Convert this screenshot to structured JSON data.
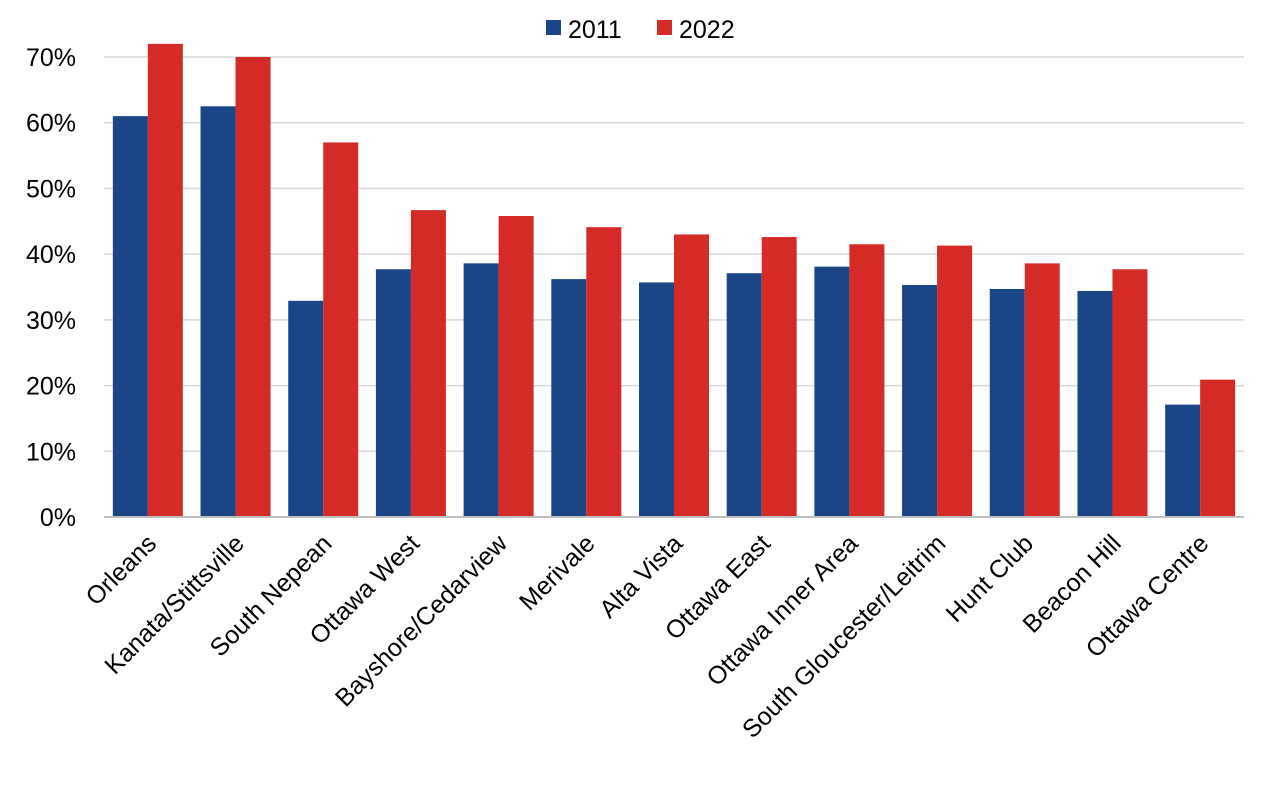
{
  "chart_data": {
    "type": "bar",
    "categories": [
      "Orleans",
      "Kanata/Stittsville",
      "South Nepean",
      "Ottawa West",
      "Bayshore/Cedarview",
      "Merivale",
      "Alta Vista",
      "Ottawa East",
      "Ottawa Inner Area",
      "South Gloucester/Leitrim",
      "Hunt Club",
      "Beacon Hill",
      "Ottawa Centre"
    ],
    "series": [
      {
        "name": "2011",
        "color": "#1a4587",
        "values": [
          61.0,
          62.5,
          32.9,
          37.7,
          38.6,
          36.2,
          35.7,
          37.1,
          38.1,
          35.3,
          34.7,
          34.4,
          17.1
        ]
      },
      {
        "name": "2022",
        "color": "#d52b27",
        "values": [
          72.0,
          70.0,
          57.0,
          46.7,
          45.8,
          44.1,
          43.0,
          42.6,
          41.5,
          41.3,
          38.6,
          37.7,
          20.9
        ]
      }
    ],
    "ylim": [
      0,
      70
    ],
    "yticks": [
      "0%",
      "10%",
      "20%",
      "30%",
      "40%",
      "50%",
      "60%",
      "70%"
    ],
    "grid": true,
    "legend_position": "top-center"
  }
}
